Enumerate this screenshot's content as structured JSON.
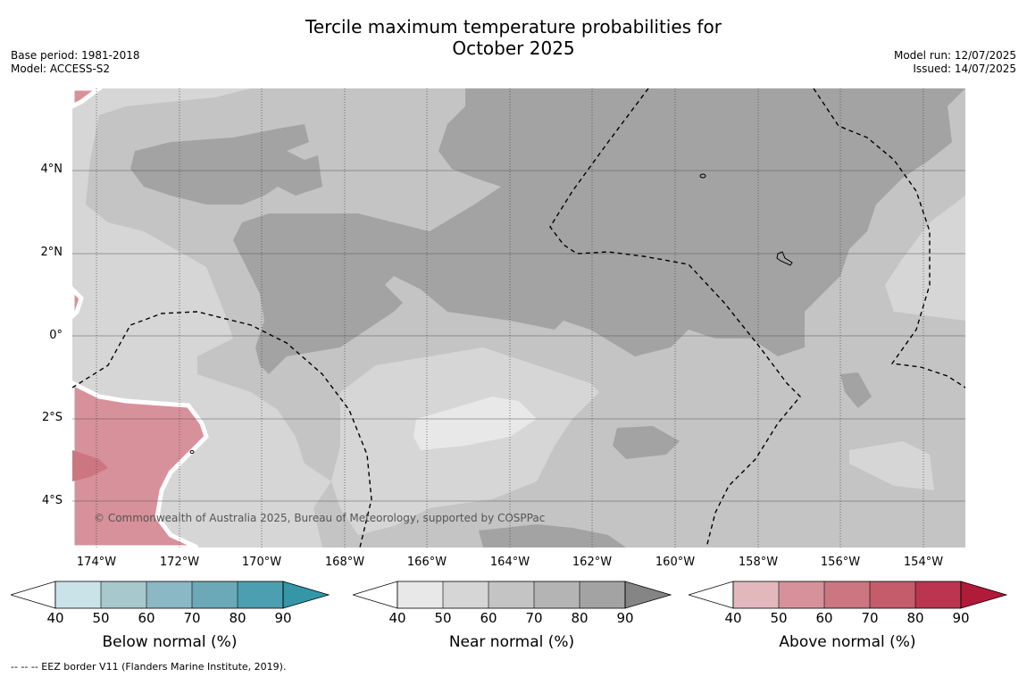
{
  "title_line1": "Tercile maximum temperature probabilities for",
  "title_line2": "October 2025",
  "base_period": "Base period: 1981-2018",
  "model": "Model: ACCESS-S2",
  "model_run": "Model run: 12/07/2025",
  "issued": "Issued: 14/07/2025",
  "lat_labels": [
    "4°N",
    "2°N",
    "0°",
    "2°S",
    "4°S"
  ],
  "lon_labels": [
    "174°W",
    "172°W",
    "170°W",
    "168°W",
    "166°W",
    "164°W",
    "162°W",
    "160°W",
    "158°W",
    "156°W",
    "154°W"
  ],
  "copyright": "© Commonwealth of Australia 2025, Bureau of Meteorology, supported by COSPPac",
  "colorbars": [
    {
      "label": "Below normal (%)",
      "ticks": [
        "40",
        "50",
        "60",
        "70",
        "80",
        "90"
      ],
      "colors": [
        "#ffffff",
        "#cae3e9",
        "#a7c8cc",
        "#8ab8c5",
        "#6ba9b8",
        "#4b9fb0",
        "#3596a8"
      ]
    },
    {
      "label": "Near normal (%)",
      "ticks": [
        "40",
        "50",
        "60",
        "70",
        "80",
        "90"
      ],
      "colors": [
        "#ffffff",
        "#e8e8e8",
        "#d6d6d6",
        "#c4c4c4",
        "#b4b4b4",
        "#a3a3a3",
        "#858585"
      ]
    },
    {
      "label": "Above normal (%)",
      "ticks": [
        "40",
        "50",
        "60",
        "70",
        "80",
        "90"
      ],
      "colors": [
        "#ffffff",
        "#e3b8bd",
        "#d7919a",
        "#cb7680",
        "#c45c6b",
        "#bb3450",
        "#b01b3a"
      ]
    }
  ],
  "footnote": "--  --  -- EEZ border V11 (Flanders Marine Institute, 2019).",
  "map_colors": {
    "near50": "#d6d6d6",
    "near60": "#c4c4c4",
    "near80": "#a3a3a3",
    "near40": "#e8e8e8",
    "above50": "#d7919a",
    "above60": "#cb7680"
  }
}
